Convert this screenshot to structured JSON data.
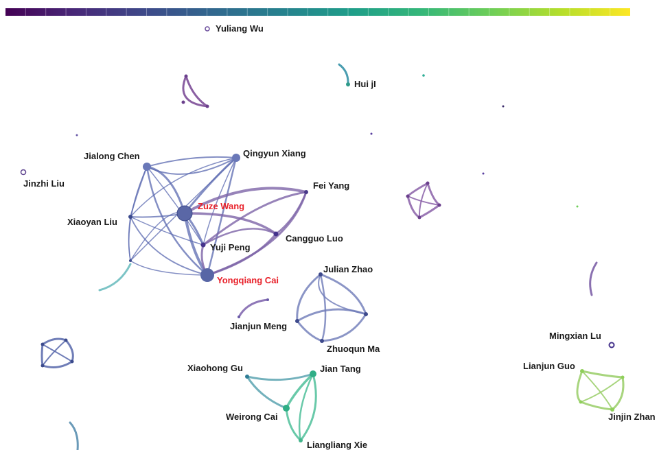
{
  "colorbar": {
    "colors": [
      "#440154",
      "#482878",
      "#3e4989",
      "#31688e",
      "#26828e",
      "#1f9e89",
      "#35b779",
      "#6ece58",
      "#b5de2b",
      "#fde725"
    ]
  },
  "colors": {
    "purple": "#7a5aa0",
    "blue": "#5a6ab2",
    "teal": "#2f8f9a",
    "cyan": "#6fb4c3",
    "green": "#3dbb8a",
    "lime": "#8fcf5a",
    "highlight": "#e8212a"
  },
  "authors": {
    "yuliang_wu": "Yuliang Wu",
    "hui_ji": "Hui jI",
    "jinzhi_liu": "Jinzhi Liu",
    "jialong_chen": "Jialong Chen",
    "qingyun_xiang": "Qingyun Xiang",
    "fei_yang": "Fei Yang",
    "zuze_wang": "Zuze Wang",
    "xiaoyan_liu": "Xiaoyan Liu",
    "yuji_peng": "Yuji Peng",
    "cangguo_luo": "Cangguo Luo",
    "yongqiang_cai": "Yongqiang Cai",
    "julian_zhao": "Julian Zhao",
    "jianjun_meng": "Jianjun Meng",
    "zhuoqun_ma": "Zhuoqun Ma",
    "mingxian_lu": "Mingxian Lu",
    "xiaohong_gu": "Xiaohong Gu",
    "jian_tang": "Jian Tang",
    "lianjun_guo": "Lianjun Guo",
    "weirong_cai": "Weirong Cai",
    "jinjin_zhang": "Jinjin Zhan",
    "liangliang_xie": "Liangliang Xie"
  }
}
